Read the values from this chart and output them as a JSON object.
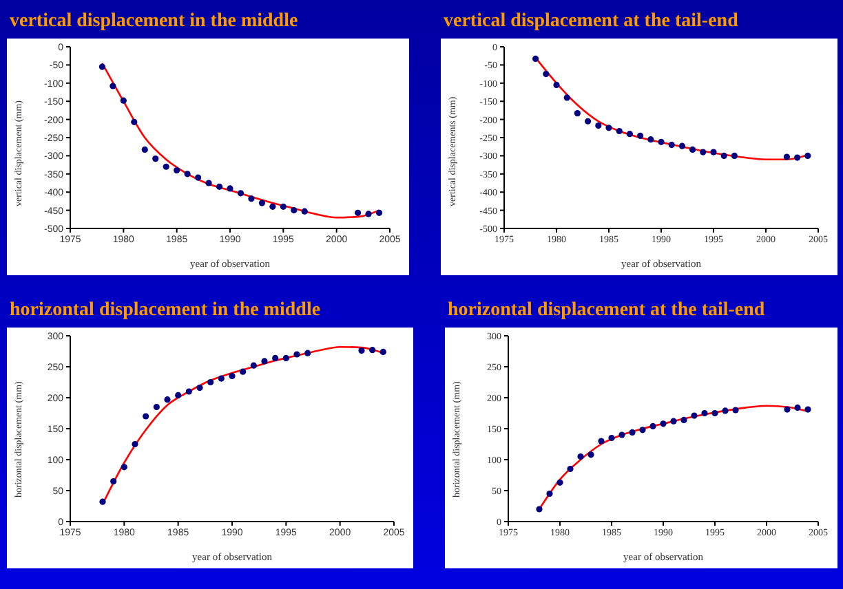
{
  "chart_data": [
    {
      "type": "scatter",
      "title": "vertical displacement in the middle",
      "xlabel": "year of observation",
      "ylabel": "vertical displacement (mm)",
      "xlim": [
        1975,
        2005
      ],
      "xticks": [
        1975,
        1980,
        1985,
        1990,
        1995,
        2000,
        2005
      ],
      "ylim": [
        -500,
        0
      ],
      "yticks": [
        -500,
        -450,
        -400,
        -350,
        -300,
        -250,
        -200,
        -150,
        -100,
        -50,
        0
      ],
      "grid": false,
      "series": [
        {
          "marker": "circle",
          "color": "#000080",
          "x": [
            1978,
            1979,
            1980,
            1981,
            1982,
            1983,
            1984,
            1985,
            1986,
            1987,
            1988,
            1989,
            1990,
            1991,
            1992,
            1993,
            1994,
            1995,
            1996,
            1997,
            2002,
            2003,
            2004
          ],
          "values": [
            -55,
            -108,
            -148,
            -207,
            -283,
            -308,
            -330,
            -340,
            -350,
            -360,
            -375,
            -385,
            -390,
            -403,
            -418,
            -430,
            -440,
            -440,
            -450,
            -453,
            -457,
            -460,
            -457
          ]
        },
        {
          "type": "line",
          "marker": "none",
          "color": "#ff0000",
          "x": [
            1978,
            1980,
            1982,
            1984,
            1986,
            1988,
            1990,
            1992,
            1994,
            1996,
            1998,
            2000,
            2002,
            2004
          ],
          "values": [
            -45,
            -150,
            -250,
            -310,
            -350,
            -378,
            -395,
            -413,
            -430,
            -445,
            -460,
            -470,
            -468,
            -450
          ]
        }
      ]
    },
    {
      "type": "scatter",
      "title": "vertical displacement at the tail-end",
      "xlabel": "year of observation",
      "ylabel": "vertical displacements (mm)",
      "xlim": [
        1975,
        2005
      ],
      "xticks": [
        1975,
        1980,
        1985,
        1990,
        1995,
        2000,
        2005
      ],
      "ylim": [
        -500,
        0
      ],
      "yticks": [
        -500,
        -450,
        -400,
        -350,
        -300,
        -250,
        -200,
        -150,
        -100,
        -50,
        0
      ],
      "grid": false,
      "series": [
        {
          "marker": "circle",
          "color": "#000080",
          "x": [
            1978,
            1979,
            1980,
            1981,
            1982,
            1983,
            1984,
            1985,
            1986,
            1987,
            1988,
            1989,
            1990,
            1991,
            1992,
            1993,
            1994,
            1995,
            1996,
            1997,
            2002,
            2003,
            2004
          ],
          "values": [
            -33,
            -75,
            -105,
            -140,
            -183,
            -205,
            -217,
            -223,
            -232,
            -240,
            -245,
            -255,
            -262,
            -270,
            -273,
            -283,
            -290,
            -290,
            -300,
            -300,
            -303,
            -305,
            -300
          ]
        },
        {
          "type": "line",
          "marker": "none",
          "color": "#ff0000",
          "x": [
            1978,
            1980,
            1982,
            1984,
            1986,
            1988,
            1990,
            1992,
            1994,
            1996,
            1998,
            2000,
            2002,
            2004
          ],
          "values": [
            -30,
            -100,
            -160,
            -205,
            -232,
            -250,
            -263,
            -275,
            -287,
            -297,
            -305,
            -310,
            -310,
            -298
          ]
        }
      ]
    },
    {
      "type": "scatter",
      "title": "horizontal displacement in the middle",
      "xlabel": "year of observation",
      "ylabel": "horizontal displacement (mm)",
      "xlim": [
        1975,
        2005
      ],
      "xticks": [
        1975,
        1980,
        1985,
        1990,
        1995,
        2000,
        2005
      ],
      "ylim": [
        0,
        300
      ],
      "yticks": [
        0,
        50,
        100,
        150,
        200,
        250,
        300
      ],
      "grid": false,
      "series": [
        {
          "marker": "circle",
          "color": "#000080",
          "x": [
            1978,
            1979,
            1980,
            1981,
            1982,
            1983,
            1984,
            1985,
            1986,
            1987,
            1988,
            1989,
            1990,
            1991,
            1992,
            1993,
            1994,
            1995,
            1996,
            1997,
            2002,
            2003,
            2004
          ],
          "values": [
            32,
            65,
            88,
            125,
            170,
            185,
            197,
            204,
            210,
            216,
            225,
            231,
            235,
            242,
            252,
            259,
            264,
            264,
            270,
            272,
            276,
            277,
            274
          ]
        },
        {
          "type": "line",
          "marker": "none",
          "color": "#ff0000",
          "x": [
            1978,
            1980,
            1982,
            1984,
            1986,
            1988,
            1990,
            1992,
            1994,
            1996,
            1998,
            2000,
            2002,
            2004
          ],
          "values": [
            28,
            95,
            148,
            188,
            210,
            228,
            240,
            250,
            260,
            268,
            276,
            282,
            281,
            272
          ]
        }
      ]
    },
    {
      "type": "scatter",
      "title": "horizontal displacement at the tail-end",
      "xlabel": "year of observation",
      "ylabel": "horizontal displacement (mm)",
      "xlim": [
        1975,
        2005
      ],
      "xticks": [
        1975,
        1980,
        1985,
        1990,
        1995,
        2000,
        2005
      ],
      "ylim": [
        0,
        300
      ],
      "yticks": [
        0,
        50,
        100,
        150,
        200,
        250,
        300
      ],
      "grid": false,
      "series": [
        {
          "marker": "circle",
          "color": "#000080",
          "x": [
            1978,
            1979,
            1980,
            1981,
            1982,
            1983,
            1984,
            1985,
            1986,
            1987,
            1988,
            1989,
            1990,
            1991,
            1992,
            1993,
            1994,
            1995,
            1996,
            1997,
            2002,
            2003,
            2004
          ],
          "values": [
            20,
            45,
            63,
            85,
            105,
            108,
            130,
            135,
            140,
            144,
            148,
            154,
            158,
            162,
            164,
            171,
            175,
            175,
            179,
            180,
            181,
            184,
            181
          ]
        },
        {
          "type": "line",
          "marker": "none",
          "color": "#ff0000",
          "x": [
            1978,
            1980,
            1982,
            1984,
            1986,
            1988,
            1990,
            1992,
            1994,
            1996,
            1998,
            2000,
            2002,
            2004
          ],
          "values": [
            20,
            68,
            100,
            125,
            140,
            150,
            158,
            166,
            173,
            179,
            184,
            187,
            185,
            178
          ]
        }
      ]
    }
  ]
}
